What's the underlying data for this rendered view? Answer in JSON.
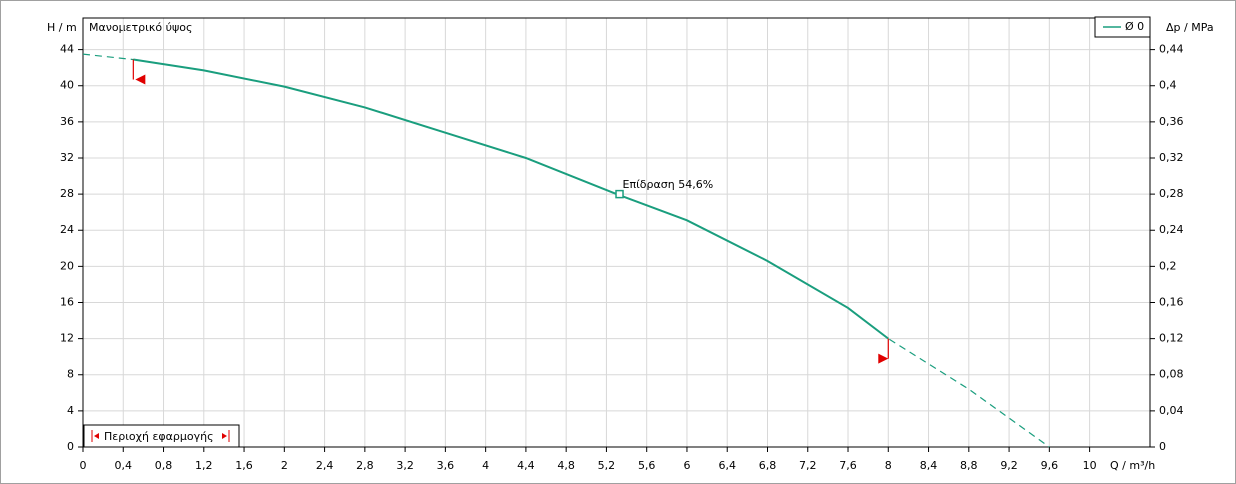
{
  "chart_data": {
    "type": "line",
    "y_title": "Μανομετρικό ύψος",
    "y_label": "H / m",
    "y2_label": "Δp / MPa",
    "x_label": "Q / m³/h",
    "x": [
      0,
      0.5,
      1.2,
      2,
      2.8,
      3.6,
      4.4,
      5.3,
      6,
      6.8,
      7.6,
      8,
      8.8,
      9.6
    ],
    "series": [
      {
        "name": "Ø 0",
        "color": "#1a9e7e",
        "values": [
          43.5,
          42.9,
          41.7,
          39.9,
          37.6,
          34.8,
          32,
          28,
          25.1,
          20.6,
          15.4,
          12,
          6.4,
          0
        ]
      }
    ],
    "operating_point": {
      "x": 5.33,
      "y": 28,
      "label": "Επίδραση  54,6%"
    },
    "application_range": {
      "label": "Περιοχή εφαρμογής",
      "x": [
        0.5,
        8
      ],
      "color": "#e00000"
    },
    "xlim": [
      0,
      10.6
    ],
    "ylim": [
      0,
      47.5
    ],
    "y2lim": [
      0,
      0.475
    ],
    "xticks": [
      0,
      {
        "value": 0.4,
        "label": "0,4"
      },
      {
        "value": 0.8,
        "label": "0,8"
      },
      {
        "value": 1.2,
        "label": "1,2"
      },
      {
        "value": 1.6,
        "label": "1,6"
      },
      2,
      {
        "value": 2.4,
        "label": "2,4"
      },
      {
        "value": 2.8,
        "label": "2,8"
      },
      {
        "value": 3.2,
        "label": "3,2"
      },
      {
        "value": 3.6,
        "label": "3,6"
      },
      4,
      {
        "value": 4.4,
        "label": "4,4"
      },
      {
        "value": 4.8,
        "label": "4,8"
      },
      {
        "value": 5.2,
        "label": "5,2"
      },
      {
        "value": 5.6,
        "label": "5,6"
      },
      6,
      {
        "value": 6.4,
        "label": "6,4"
      },
      {
        "value": 6.8,
        "label": "6,8"
      },
      {
        "value": 7.2,
        "label": "7,2"
      },
      {
        "value": 7.6,
        "label": "7,6"
      },
      8,
      {
        "value": 8.4,
        "label": "8,4"
      },
      {
        "value": 8.8,
        "label": "8,8"
      },
      {
        "value": 9.2,
        "label": "9,2"
      },
      {
        "value": 9.6,
        "label": "9,6"
      },
      10
    ],
    "yticks": [
      0,
      4,
      8,
      12,
      16,
      20,
      24,
      28,
      32,
      36,
      40,
      44
    ],
    "y2ticks": [
      0,
      {
        "value": 0.04,
        "label": "0,04"
      },
      {
        "value": 0.08,
        "label": "0,08"
      },
      {
        "value": 0.12,
        "label": "0,12"
      },
      {
        "value": 0.16,
        "label": "0,16"
      },
      {
        "value": 0.2,
        "label": "0,2"
      },
      {
        "value": 0.24,
        "label": "0,24"
      },
      {
        "value": 0.28,
        "label": "0,28"
      },
      {
        "value": 0.32,
        "label": "0,32"
      },
      {
        "value": 0.36,
        "label": "0,36"
      },
      {
        "value": 0.4,
        "label": "0,4"
      },
      {
        "value": 0.44,
        "label": "0,44"
      }
    ],
    "grid": true
  }
}
